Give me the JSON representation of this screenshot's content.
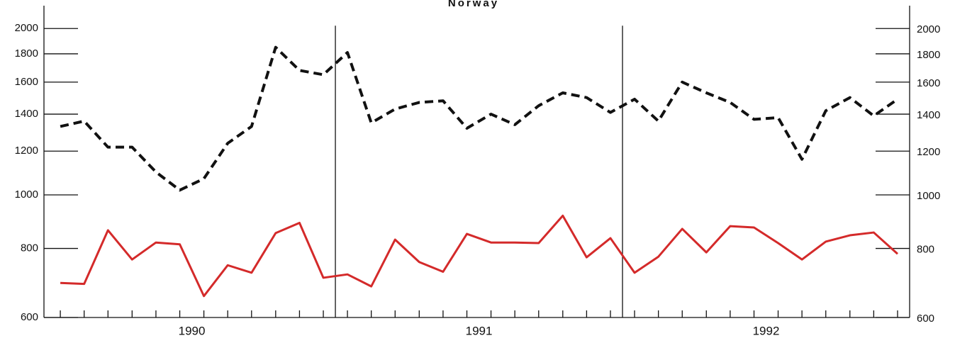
{
  "chart_data": {
    "type": "line",
    "title": "Norway",
    "log_scale": true,
    "x": [
      1990.042,
      1990.125,
      1990.208,
      1990.292,
      1990.375,
      1990.458,
      1990.542,
      1990.625,
      1990.708,
      1990.792,
      1990.875,
      1990.958,
      1991.042,
      1991.125,
      1991.208,
      1991.292,
      1991.375,
      1991.458,
      1991.542,
      1991.625,
      1991.708,
      1991.792,
      1991.875,
      1991.958,
      1992.042,
      1992.125,
      1992.208,
      1992.292,
      1992.375,
      1992.458,
      1992.542,
      1992.625,
      1992.708,
      1992.792,
      1992.875,
      1992.958
    ],
    "series": [
      {
        "color": "#111111",
        "dashed": true,
        "values": [
          1330,
          1360,
          1220,
          1220,
          1100,
          1020,
          1070,
          1240,
          1330,
          1850,
          1680,
          1650,
          1810,
          1350,
          1430,
          1470,
          1480,
          1320,
          1400,
          1340,
          1450,
          1530,
          1500,
          1410,
          1490,
          1360,
          1600,
          1530,
          1470,
          1370,
          1380,
          1160,
          1420,
          1500,
          1390,
          1490
        ]
      },
      {
        "color": "#d42a2a",
        "dashed": false,
        "values": [
          693,
          690,
          863,
          764,
          820,
          814,
          656,
          746,
          723,
          853,
          890,
          708,
          718,
          683,
          830,
          756,
          726,
          850,
          820,
          820,
          818,
          917,
          771,
          835,
          723,
          773,
          868,
          787,
          878,
          873,
          818,
          764,
          823,
          845,
          855,
          782
        ]
      }
    ],
    "xlim": [
      1989.985,
      1993.0
    ],
    "xticks": [
      {
        "value": 1990.5,
        "label": "1990"
      },
      {
        "value": 1991.5,
        "label": "1991"
      },
      {
        "value": 1992.5,
        "label": "1992"
      }
    ],
    "year_lines": [
      1991,
      1992
    ],
    "ylim": [
      600,
      2200
    ],
    "yticks": [
      600,
      800,
      1000,
      1200,
      1400,
      1600,
      1800,
      2000
    ]
  }
}
